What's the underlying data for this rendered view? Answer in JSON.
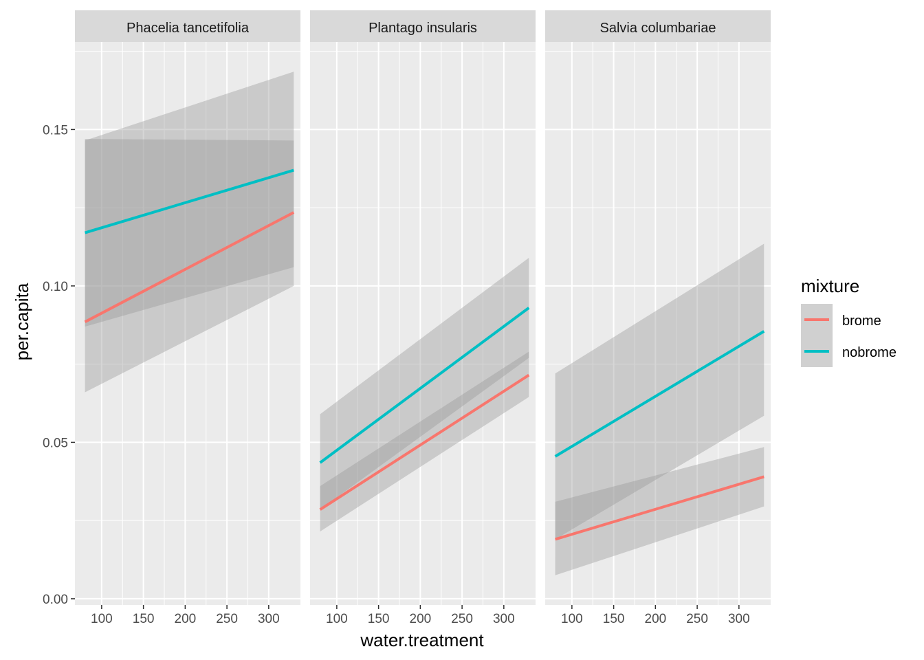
{
  "chart_data": {
    "type": "line",
    "facet_variable": "species",
    "xlabel": "water.treatment",
    "ylabel": "per.capita",
    "xlim": [
      68,
      338
    ],
    "ylim": [
      -0.002,
      0.178
    ],
    "x_ticks": [
      100,
      150,
      200,
      250,
      300
    ],
    "y_ticks": [
      0.0,
      0.05,
      0.1,
      0.15
    ],
    "y_tick_labels": [
      "0.00",
      "0.05",
      "0.10",
      "0.15"
    ],
    "grid": true,
    "legend": {
      "title": "mixture",
      "placement": "right",
      "entries": [
        "brome",
        "nobrome"
      ]
    },
    "colors": {
      "brome": "#F8766D",
      "nobrome": "#00BFC4",
      "panel_background": "#EBEBEB",
      "strip_background": "#D9D9D9",
      "ribbon": "#999999"
    },
    "series_x": [
      80,
      330
    ],
    "panels": [
      {
        "title": "Phacelia tancetifolia",
        "series": [
          {
            "name": "brome",
            "values": [
              0.0885,
              0.1235
            ],
            "ci_lower": [
              0.066,
              0.1
            ],
            "ci_mid": [
              0.098,
              0.1005
            ],
            "ci_upper": [
              0.1465,
              0.1685
            ]
          },
          {
            "name": "nobrome",
            "values": [
              0.117,
              0.137
            ],
            "ci_lower": [
              0.087,
              0.106
            ],
            "ci_mid": [
              0.115,
              0.106
            ],
            "ci_upper": [
              0.147,
              0.1465
            ]
          }
        ]
      },
      {
        "title": "Plantago insularis",
        "series": [
          {
            "name": "brome",
            "values": [
              0.0285,
              0.0715
            ],
            "ci_lower": [
              0.0215,
              0.0645
            ],
            "ci_mid": [
              0.0325,
              0.0685
            ],
            "ci_upper": [
              0.036,
              0.079
            ]
          },
          {
            "name": "nobrome",
            "values": [
              0.0435,
              0.093
            ],
            "ci_lower": [
              0.0285,
              0.077
            ],
            "ci_mid": [
              0.0435,
              0.0895
            ],
            "ci_upper": [
              0.059,
              0.109
            ]
          }
        ]
      },
      {
        "title": "Salvia columbariae",
        "series": [
          {
            "name": "brome",
            "values": [
              0.019,
              0.039
            ],
            "ci_lower": [
              0.0075,
              0.0295
            ],
            "ci_mid": [
              0.0175,
              0.0375
            ],
            "ci_upper": [
              0.031,
              0.0485
            ]
          },
          {
            "name": "nobrome",
            "values": [
              0.0455,
              0.0855
            ],
            "ci_lower": [
              0.019,
              0.0585
            ],
            "ci_mid": [
              0.0465,
              0.0795
            ],
            "ci_upper": [
              0.072,
              0.1135
            ]
          }
        ]
      }
    ]
  }
}
